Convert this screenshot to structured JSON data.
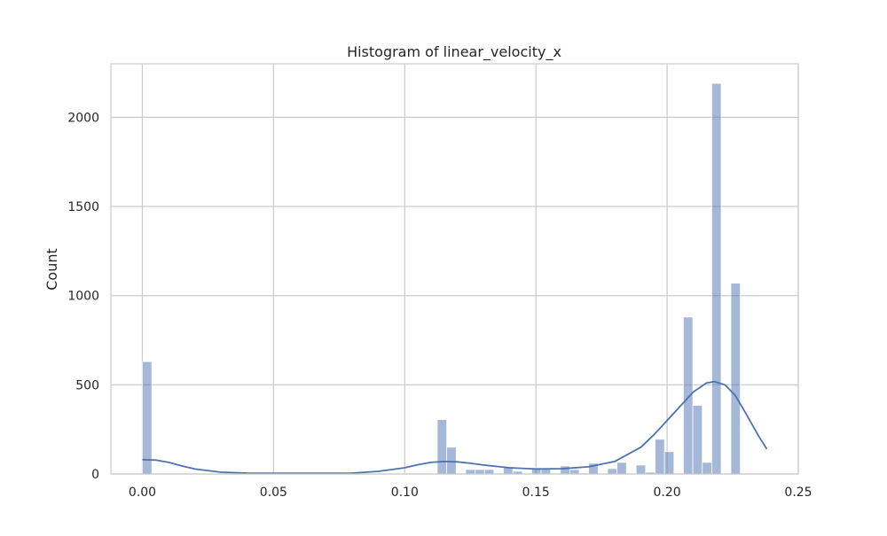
{
  "chart_data": {
    "type": "bar",
    "title": "Histogram of linear_velocity_x",
    "xlabel": "",
    "ylabel": "Count",
    "xlim": [
      -0.012,
      0.25
    ],
    "ylim": [
      0,
      2300
    ],
    "x_ticks": [
      "0.00",
      "0.05",
      "0.10",
      "0.15",
      "0.20",
      "0.25"
    ],
    "x_tick_values": [
      0.0,
      0.05,
      0.1,
      0.15,
      0.2,
      0.25
    ],
    "y_ticks": [
      "0",
      "500",
      "1000",
      "1500",
      "2000"
    ],
    "y_tick_values": [
      0,
      500,
      1000,
      1500,
      2000
    ],
    "grid": true,
    "bin_width": 0.0036,
    "bins": [
      {
        "x": 0.0,
        "count": 630
      },
      {
        "x": 0.1124,
        "count": 305
      },
      {
        "x": 0.116,
        "count": 150
      },
      {
        "x": 0.1232,
        "count": 25
      },
      {
        "x": 0.1268,
        "count": 25
      },
      {
        "x": 0.1304,
        "count": 25
      },
      {
        "x": 0.1376,
        "count": 40
      },
      {
        "x": 0.1412,
        "count": 15
      },
      {
        "x": 0.1484,
        "count": 35
      },
      {
        "x": 0.152,
        "count": 30
      },
      {
        "x": 0.1593,
        "count": 45
      },
      {
        "x": 0.1629,
        "count": 25
      },
      {
        "x": 0.1701,
        "count": 60
      },
      {
        "x": 0.1773,
        "count": 30
      },
      {
        "x": 0.1809,
        "count": 65
      },
      {
        "x": 0.1882,
        "count": 50
      },
      {
        "x": 0.1918,
        "count": 10
      },
      {
        "x": 0.1954,
        "count": 195
      },
      {
        "x": 0.199,
        "count": 125
      },
      {
        "x": 0.2062,
        "count": 880
      },
      {
        "x": 0.2098,
        "count": 385
      },
      {
        "x": 0.2134,
        "count": 65
      },
      {
        "x": 0.217,
        "count": 2190
      },
      {
        "x": 0.2243,
        "count": 1070
      }
    ],
    "kde": {
      "x": [
        0.0,
        0.005,
        0.01,
        0.015,
        0.02,
        0.03,
        0.04,
        0.05,
        0.06,
        0.07,
        0.08,
        0.09,
        0.1,
        0.105,
        0.11,
        0.115,
        0.12,
        0.125,
        0.13,
        0.14,
        0.15,
        0.16,
        0.17,
        0.18,
        0.19,
        0.195,
        0.2,
        0.205,
        0.21,
        0.215,
        0.218,
        0.222,
        0.226,
        0.23,
        0.235,
        0.238
      ],
      "y": [
        80,
        78,
        65,
        45,
        28,
        10,
        5,
        4,
        4,
        4,
        5,
        15,
        35,
        52,
        65,
        70,
        68,
        60,
        50,
        35,
        28,
        30,
        40,
        70,
        150,
        220,
        300,
        380,
        460,
        510,
        518,
        500,
        440,
        340,
        210,
        140
      ]
    },
    "bar_color": "#4c72b0",
    "bar_alpha": 0.5,
    "kde_color": "#4c72b0",
    "grid_color": "#cccccc",
    "frame_color": "#cccccc"
  }
}
